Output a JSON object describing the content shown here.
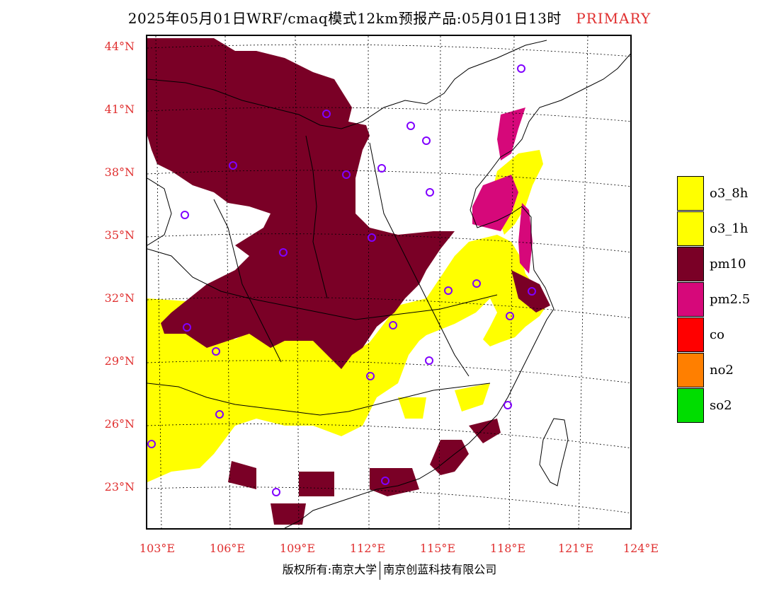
{
  "title": {
    "main": "2025年05月01日WRF/cmaq模式12km预报产品:05月01日13时",
    "tag": "PRIMARY"
  },
  "axes": {
    "lat_labels": [
      "44°N",
      "41°N",
      "38°N",
      "35°N",
      "32°N",
      "29°N",
      "26°N",
      "23°N"
    ],
    "lon_labels": [
      "103°E",
      "106°E",
      "109°E",
      "112°E",
      "115°E",
      "118°E",
      "121°E",
      "124°E"
    ]
  },
  "legend": {
    "items": [
      {
        "label": "o3_8h",
        "color": "#ffff00"
      },
      {
        "label": "o3_1h",
        "color": "#ffff00"
      },
      {
        "label": "pm10",
        "color": "#7a0026"
      },
      {
        "label": "pm2.5",
        "color": "#d6087a"
      },
      {
        "label": "co",
        "color": "#ff0000"
      },
      {
        "label": "no2",
        "color": "#ff7f00"
      },
      {
        "label": "so2",
        "color": "#00dd00"
      }
    ]
  },
  "footer": {
    "left": "版权所有:南京大学",
    "right": "南京创蓝科技有限公司"
  },
  "colors": {
    "pm10": "#7a0026",
    "pm25": "#d6087a",
    "o3": "#ffff00",
    "station": "#8000ff",
    "accent": "#e03030"
  }
}
